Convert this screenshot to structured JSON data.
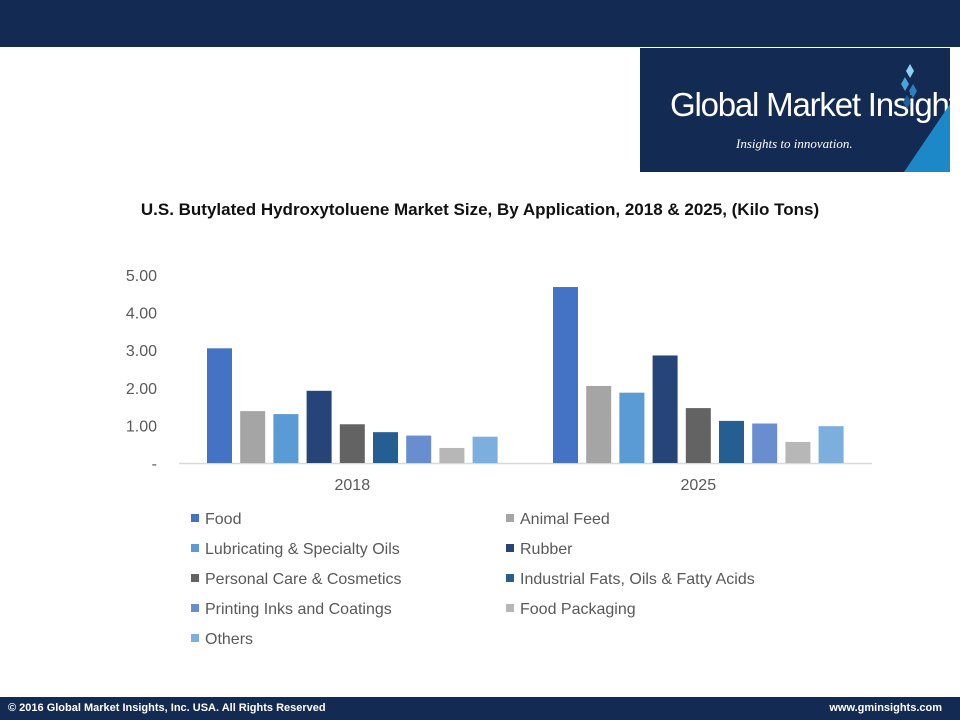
{
  "brand": {
    "name": "Global Market Insights",
    "tagline": "Insights to innovation."
  },
  "chart_data": {
    "type": "bar",
    "title": "U.S. Butylated Hydroxytoluene Market Size, By Application, 2018 & 2025, (Kilo Tons)",
    "categories": [
      "2018",
      "2025"
    ],
    "y_ticks": [
      "-",
      "1.00",
      "2.00",
      "3.00",
      "4.00",
      "5.00"
    ],
    "ylim": [
      0,
      5
    ],
    "xlabel": "",
    "ylabel": "",
    "grid": false,
    "legend_position": "bottom",
    "series": [
      {
        "name": "Food",
        "color": "#4472c4",
        "values": [
          3.05,
          4.68
        ]
      },
      {
        "name": "Animal Feed",
        "color": "#a5a5a5",
        "values": [
          1.38,
          2.05
        ]
      },
      {
        "name": "Lubricating & Specialty Oils",
        "color": "#5b9bd5",
        "values": [
          1.3,
          1.87
        ]
      },
      {
        "name": "Rubber",
        "color": "#264478",
        "values": [
          1.92,
          2.86
        ]
      },
      {
        "name": "Personal Care & Cosmetics",
        "color": "#636363",
        "values": [
          1.03,
          1.46
        ]
      },
      {
        "name": "Industrial Fats, Oils & Fatty Acids",
        "color": "#255e91",
        "values": [
          0.82,
          1.12
        ]
      },
      {
        "name": "Printing Inks and Coatings",
        "color": "#698ed0",
        "values": [
          0.73,
          1.05
        ]
      },
      {
        "name": "Food Packaging",
        "color": "#b7b7b7",
        "values": [
          0.4,
          0.56
        ]
      },
      {
        "name": "Others",
        "color": "#7cafdd",
        "values": [
          0.7,
          0.98
        ]
      }
    ]
  },
  "footer": {
    "copyright": "© 2016 Global Market Insights, Inc. USA.  All Rights Reserved",
    "website": "www.gminsights.com"
  }
}
